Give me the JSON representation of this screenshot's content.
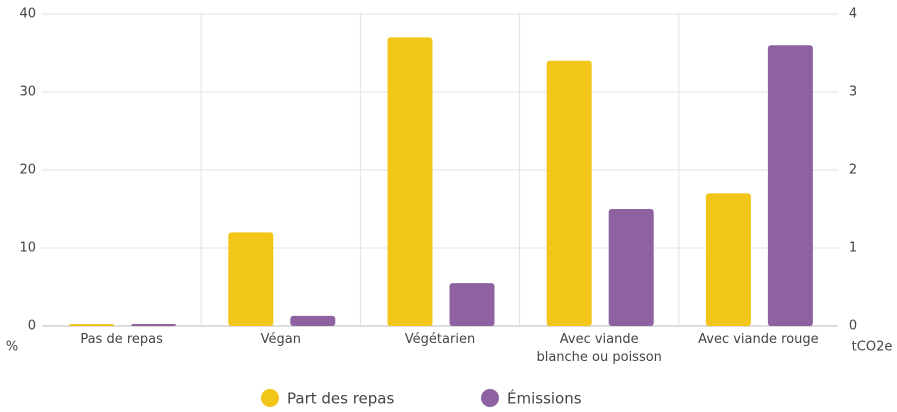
{
  "chart_data": {
    "type": "bar",
    "categories": [
      "Pas de repas",
      "Végan",
      "Végétarien",
      "Avec viande blanche ou poisson",
      "Avec viande rouge"
    ],
    "series": [
      {
        "name": "Part des repas",
        "color": "#f2c618",
        "values": [
          0,
          12,
          37,
          34,
          17
        ]
      },
      {
        "name": "Émissions",
        "color": "#8e62a0",
        "axis": "y2",
        "values": [
          0,
          0.13,
          0.55,
          1.5,
          3.6
        ]
      }
    ],
    "ylabel": "%",
    "y2label": "tCO2e",
    "ylim": [
      0,
      40
    ],
    "yticks": [
      0,
      10,
      20,
      30,
      40
    ],
    "y2lim": [
      0,
      4
    ],
    "y2ticks": [
      0,
      1,
      2,
      3,
      4
    ],
    "grid": true,
    "legend": "bottom"
  }
}
